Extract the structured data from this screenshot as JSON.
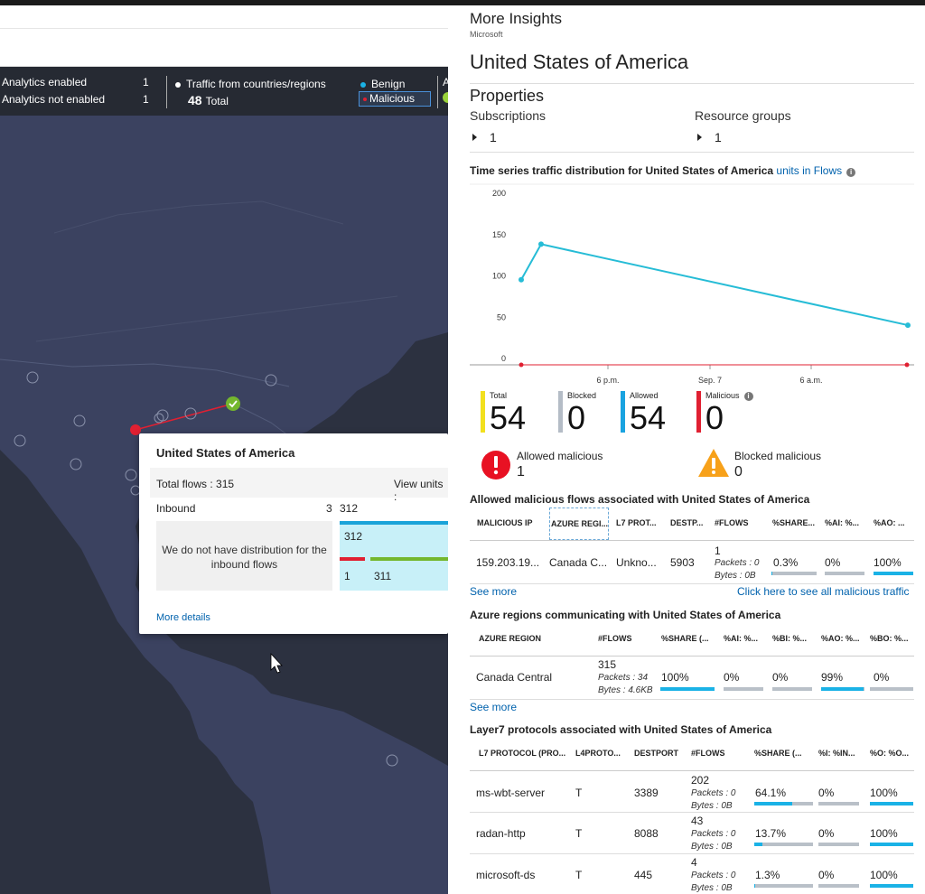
{
  "legend": {
    "analytics_enabled_label": "Analytics enabled",
    "analytics_enabled_count": "1",
    "analytics_not_enabled_label": "Analytics not enabled",
    "analytics_not_enabled_count": "1",
    "traffic_label": "Traffic from countries/regions",
    "traffic_total_value": "48",
    "traffic_total_label": "Total",
    "benign_label": "Benign",
    "malicious_label": "Malicious",
    "cut_label": "A"
  },
  "popup": {
    "title": "United States of America",
    "total_flows": "Total flows : 315",
    "view_units": "View units :",
    "inbound_label": "Inbound",
    "inbound_count": "3",
    "inbound_flows": "312",
    "no_distribution": "We do not have distribution for the inbound flows",
    "bar_top_value": "312",
    "bar_malicious_value": "1",
    "bar_benign_value": "311",
    "more_details": "More details"
  },
  "panel": {
    "title": "More Insights",
    "subtitle": "Microsoft",
    "country": "United States of America",
    "properties": "Properties",
    "subscriptions_label": "Subscriptions",
    "subscriptions_value": "1",
    "resource_groups_label": "Resource groups",
    "resource_groups_value": "1",
    "timeseries_title": "Time series traffic distribution for United States of America",
    "timeseries_units": "units in Flows",
    "kpis": [
      {
        "label": "Total",
        "value": "54",
        "color": "#f2e01e"
      },
      {
        "label": "Blocked",
        "value": "0",
        "color": "#b4bcc6"
      },
      {
        "label": "Allowed",
        "value": "54",
        "color": "#1aa3e0"
      },
      {
        "label": "Malicious",
        "value": "0",
        "color": "#e02032"
      }
    ],
    "allowed_malicious_label": "Allowed malicious",
    "allowed_malicious_value": "1",
    "blocked_malicious_label": "Blocked malicious",
    "blocked_malicious_value": "0",
    "mal_flows": {
      "title": "Allowed malicious flows associated with United States of America",
      "headers": [
        "MALICIOUS IP",
        "AZURE REGI...",
        "L7 PROT...",
        "DESTP...",
        "#FLOWS",
        "%SHARE...",
        "%AI: %...",
        "%AO: ..."
      ],
      "row": {
        "ip": "159.203.19...",
        "region": "Canada C...",
        "l7": "Unkno...",
        "port": "5903",
        "flows": "1",
        "packets": "Packets : 0",
        "bytes": "Bytes : 0B",
        "share": "0.3%",
        "ai": "0%",
        "ao": "100%"
      },
      "see_more": "See more",
      "see_all": "Click here to see all malicious traffic"
    },
    "regions": {
      "title": "Azure regions communicating with United States of America",
      "headers": [
        "AZURE REGION",
        "#FLOWS",
        "%SHARE (...",
        "%AI: %...",
        "%BI: %...",
        "%AO: %...",
        "%BO: %..."
      ],
      "row": {
        "region": "Canada Central",
        "flows": "315",
        "packets": "Packets : 34",
        "bytes": "Bytes : 4.6KB",
        "share": "100%",
        "ai": "0%",
        "bi": "0%",
        "ao": "99%",
        "bo": "0%"
      },
      "see_more": "See more"
    },
    "l7": {
      "title": "Layer7 protocols associated with United States of America",
      "headers": [
        "L7 PROTOCOL (PRO...",
        "L4PROTO...",
        "DESTPORT",
        "#FLOWS",
        "%SHARE (...",
        "%I: %IN...",
        "%O: %O..."
      ],
      "rows": [
        {
          "proto": "ms-wbt-server",
          "l4": "T",
          "port": "3389",
          "flows": "202",
          "packets": "Packets : 0",
          "bytes": "Bytes : 0B",
          "share": "64.1%",
          "share_frac": 0.641,
          "i": "0%",
          "o": "100%"
        },
        {
          "proto": "radan-http",
          "l4": "T",
          "port": "8088",
          "flows": "43",
          "packets": "Packets : 0",
          "bytes": "Bytes : 0B",
          "share": "13.7%",
          "share_frac": 0.137,
          "i": "0%",
          "o": "100%"
        },
        {
          "proto": "microsoft-ds",
          "l4": "T",
          "port": "445",
          "flows": "4",
          "packets": "Packets : 0",
          "bytes": "Bytes : 0B",
          "share": "1.3%",
          "share_frac": 0.013,
          "i": "0%",
          "o": "100%"
        }
      ]
    }
  },
  "chart_data": {
    "type": "line",
    "x_tick_labels": [
      "6 p.m.",
      "Sep. 7",
      "6 a.m."
    ],
    "y_ticks": [
      0,
      50,
      100,
      150,
      200
    ],
    "ylim": [
      0,
      200
    ],
    "series": [
      {
        "color": "#26bcd6",
        "values": [
          103,
          146,
          48
        ]
      },
      {
        "color": "#e02032",
        "values": [
          0,
          0,
          0
        ]
      }
    ],
    "grid": false
  }
}
